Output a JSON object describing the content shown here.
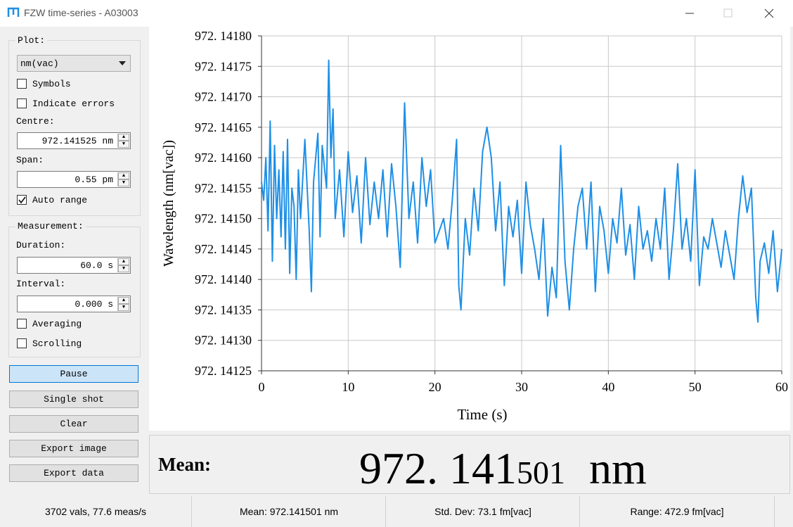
{
  "window": {
    "title": "FZW time-series - A03003"
  },
  "sidebar": {
    "plot_group": "Plot:",
    "unit_select": "nm(vac)",
    "symbols": {
      "label": "Symbols",
      "checked": false
    },
    "indicate_errors": {
      "label": "Indicate errors",
      "checked": false
    },
    "centre_label": "Centre:",
    "centre_value": "972.141525 nm",
    "span_label": "Span:",
    "span_value": "0.55 pm",
    "auto_range": {
      "label": "Auto range",
      "checked": true
    },
    "measurement_group": "Measurement:",
    "duration_label": "Duration:",
    "duration_value": "60.0 s",
    "interval_label": "Interval:",
    "interval_value": "0.000 s",
    "averaging": {
      "label": "Averaging",
      "checked": false
    },
    "scrolling": {
      "label": "Scrolling",
      "checked": false
    },
    "buttons": [
      "Pause",
      "Single shot",
      "Clear",
      "Export image",
      "Export data"
    ]
  },
  "chart_data": {
    "type": "line",
    "xlabel": "Time (s)",
    "ylabel": "Wavelength (nm[vac])",
    "color": "#1e8fe6",
    "grid": true,
    "xlim": [
      0,
      60
    ],
    "ylim": [
      972.14125,
      972.1418
    ],
    "xticks": [
      0,
      10,
      20,
      30,
      40,
      50,
      60
    ],
    "yticks": [
      {
        "value": 972.1418,
        "label": "972. 14180"
      },
      {
        "value": 972.14175,
        "label": "972. 14175"
      },
      {
        "value": 972.1417,
        "label": "972. 14170"
      },
      {
        "value": 972.14165,
        "label": "972. 14165"
      },
      {
        "value": 972.1416,
        "label": "972. 14160"
      },
      {
        "value": 972.14155,
        "label": "972. 14155"
      },
      {
        "value": 972.1415,
        "label": "972. 14150"
      },
      {
        "value": 972.14145,
        "label": "972. 14145"
      },
      {
        "value": 972.1414,
        "label": "972. 14140"
      },
      {
        "value": 972.14135,
        "label": "972. 14135"
      },
      {
        "value": 972.1413,
        "label": "972. 14130"
      },
      {
        "value": 972.14125,
        "label": "972. 14125"
      }
    ],
    "x": [
      0,
      0.25,
      0.5,
      0.75,
      1,
      1.25,
      1.5,
      1.75,
      2,
      2.25,
      2.5,
      2.75,
      3,
      3.25,
      3.5,
      3.75,
      4,
      4.25,
      4.5,
      5,
      5.5,
      5.75,
      6,
      6.5,
      6.75,
      7,
      7.5,
      7.75,
      8,
      8.25,
      8.5,
      9,
      9.5,
      10,
      10.5,
      11,
      11.5,
      12,
      12.5,
      13,
      13.5,
      14,
      14.5,
      15,
      15.5,
      16,
      16.5,
      17,
      17.5,
      18,
      18.5,
      19,
      19.5,
      20,
      20.5,
      21,
      21.5,
      22,
      22.5,
      22.75,
      23,
      23.5,
      24,
      24.5,
      25,
      25.5,
      26,
      26.5,
      27,
      27.5,
      28,
      28.5,
      29,
      29.5,
      30,
      30.5,
      31,
      31.5,
      32,
      32.5,
      33,
      33.5,
      34,
      34.5,
      35,
      35.5,
      36,
      36.5,
      37,
      37.5,
      38,
      38.5,
      39,
      39.5,
      40,
      40.5,
      41,
      41.5,
      42,
      42.5,
      43,
      43.5,
      44,
      44.5,
      45,
      45.5,
      46,
      46.5,
      47,
      47.5,
      48,
      48.5,
      49,
      49.5,
      50,
      50.5,
      51,
      51.5,
      52,
      52.5,
      53,
      53.5,
      54,
      54.5,
      55,
      55.5,
      56,
      56.5,
      57,
      57.25,
      57.5,
      58,
      58.5,
      59,
      59.5,
      60
    ],
    "values": [
      972.14156,
      972.14153,
      972.1416,
      972.14148,
      972.14166,
      972.14143,
      972.14162,
      972.1415,
      972.14158,
      972.14147,
      972.14161,
      972.14145,
      972.14163,
      972.14141,
      972.14155,
      972.14152,
      972.1414,
      972.14158,
      972.1415,
      972.14163,
      972.14148,
      972.14138,
      972.14156,
      972.14164,
      972.14147,
      972.14162,
      972.14155,
      972.14176,
      972.1416,
      972.14168,
      972.1415,
      972.14158,
      972.14147,
      972.14161,
      972.14151,
      972.14157,
      972.14146,
      972.1416,
      972.14149,
      972.14156,
      972.1415,
      972.14158,
      972.14147,
      972.14159,
      972.14152,
      972.14142,
      972.14169,
      972.1415,
      972.14156,
      972.14146,
      972.1416,
      972.14152,
      972.14158,
      972.14146,
      972.14148,
      972.1415,
      972.14145,
      972.14153,
      972.14163,
      972.14139,
      972.14135,
      972.1415,
      972.14144,
      972.14155,
      972.14148,
      972.14161,
      972.14165,
      972.1416,
      972.14148,
      972.14156,
      972.14139,
      972.14152,
      972.14147,
      972.14153,
      972.14141,
      972.14156,
      972.14149,
      972.14145,
      972.1414,
      972.1415,
      972.14134,
      972.14142,
      972.14137,
      972.14162,
      972.14143,
      972.14135,
      972.14145,
      972.14152,
      972.14155,
      972.14145,
      972.14156,
      972.14138,
      972.14152,
      972.14148,
      972.14141,
      972.1415,
      972.14146,
      972.14155,
      972.14144,
      972.14149,
      972.1414,
      972.14152,
      972.14145,
      972.14148,
      972.14143,
      972.1415,
      972.14145,
      972.14155,
      972.1414,
      972.14148,
      972.14159,
      972.14145,
      972.1415,
      972.14143,
      972.14158,
      972.14139,
      972.14147,
      972.14145,
      972.1415,
      972.14146,
      972.14142,
      972.14148,
      972.14144,
      972.1414,
      972.1415,
      972.14157,
      972.14151,
      972.14155,
      972.14137,
      972.14133,
      972.14143,
      972.14146,
      972.14141,
      972.14148,
      972.14138,
      972.14145
    ]
  },
  "mean_display": {
    "label": "Mean:",
    "value_major": "972. 141",
    "value_minor": "501",
    "unit": "nm"
  },
  "status_bar": [
    "3702 vals, 77.6 meas/s",
    "Mean: 972.141501 nm",
    "Std. Dev: 73.1 fm[vac]",
    "Range: 472.9 fm[vac]"
  ]
}
